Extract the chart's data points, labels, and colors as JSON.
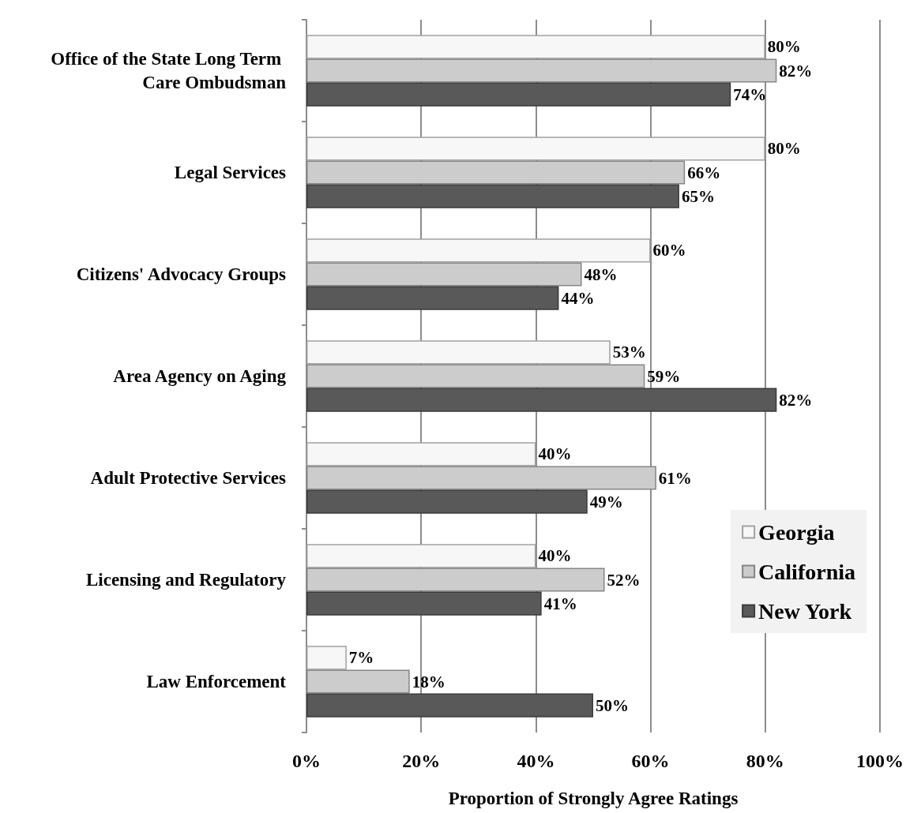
{
  "chart_data": {
    "type": "bar",
    "orientation": "horizontal",
    "categories": [
      "Office of the State Long Term Care Ombudsman",
      "Legal Services",
      "Citizens' Advocacy Groups",
      "Area Agency on Aging",
      "Adult Protective Services",
      "Licensing and Regulatory",
      "Law Enforcement"
    ],
    "series": [
      {
        "name": "Georgia",
        "color": "#f7f7f7",
        "values": [
          80,
          80,
          60,
          53,
          40,
          40,
          7
        ],
        "value_labels": [
          "80%",
          "80%",
          "60%",
          "53%",
          "40%",
          "40%",
          "7%"
        ]
      },
      {
        "name": "California",
        "color": "#cccccc",
        "values": [
          82,
          66,
          48,
          59,
          61,
          52,
          18
        ],
        "value_labels": [
          "82%",
          "66%",
          "48%",
          "59%",
          "61%",
          "52%",
          "18%"
        ]
      },
      {
        "name": "New York",
        "color": "#595959",
        "values": [
          74,
          65,
          44,
          82,
          49,
          41,
          50
        ],
        "value_labels": [
          "74%",
          "65%",
          "44%",
          "82%",
          "49%",
          "41%",
          "50%"
        ]
      }
    ],
    "xlabel": "Proportion of Strongly Agree Ratings",
    "xlim": [
      0,
      100
    ],
    "xticks": [
      {
        "value": 0,
        "label": "0%"
      },
      {
        "value": 20,
        "label": "20%"
      },
      {
        "value": 40,
        "label": "40%"
      },
      {
        "value": 60,
        "label": "60%"
      },
      {
        "value": 80,
        "label": "80%"
      },
      {
        "value": 100,
        "label": "100%"
      }
    ],
    "grid": "x",
    "legend": "bottom right"
  }
}
